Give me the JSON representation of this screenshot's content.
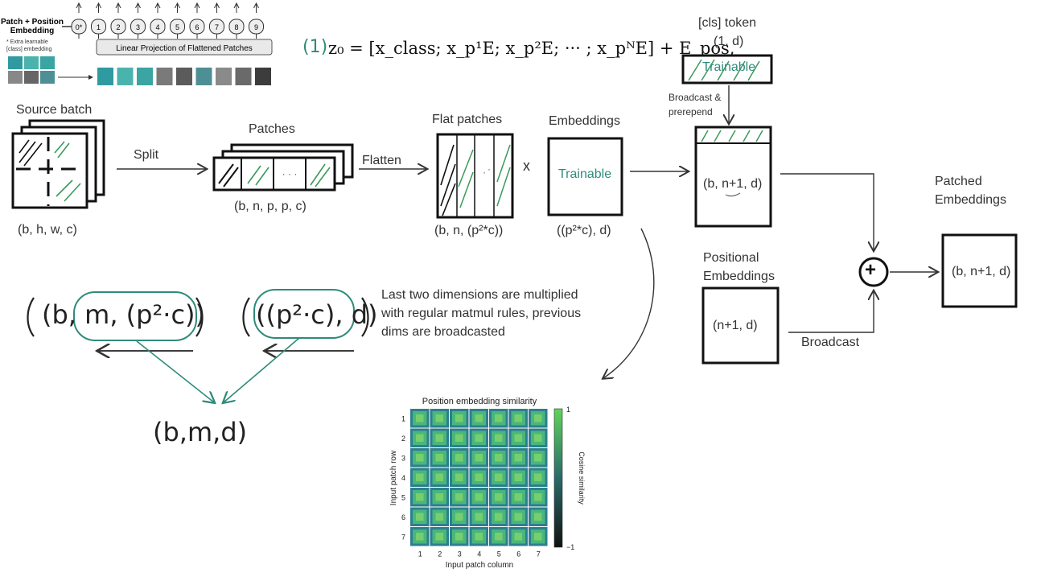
{
  "colors": {
    "teal": "#2e8b7a",
    "hatch_green": "#3a9a5a",
    "black": "#111111"
  },
  "thumbnail": {
    "title_line1": "Patch + Position",
    "title_line2": "Embedding",
    "note_line1": "* Extra learnable",
    "note_line2": "[class] embedding",
    "projection_label": "Linear Projection of Flattened Patches",
    "tokens": [
      "0*",
      "1",
      "2",
      "3",
      "4",
      "5",
      "6",
      "7",
      "8",
      "9"
    ]
  },
  "equation": {
    "number": "(1)",
    "text": "z₀ = [x_class; x_p¹E; x_p²E; ··· ; x_pᴺE] + E_pos,"
  },
  "source_batch": {
    "title": "Source batch",
    "shape": "(b, h, w, c)"
  },
  "split_label": "Split",
  "patches": {
    "title": "Patches",
    "shape": "(b, n, p, p, c)",
    "dots": "· · ·"
  },
  "flatten_label": "Flatten",
  "flat_patches": {
    "title": "Flat patches",
    "shape": "(b, n, (p²*c))"
  },
  "times": "x",
  "embeddings": {
    "title": "Embeddings",
    "inner": "Trainable",
    "shape": "((p²*c), d)"
  },
  "cls_token": {
    "title": "[cls] token",
    "shape": "(1, d)",
    "inner": "Trainable",
    "arrow_label_line1": "Broadcast &",
    "arrow_label_line2": "prerepend"
  },
  "concat": {
    "shape": "(b, n+1, d)"
  },
  "patched_embeddings": {
    "title_line1": "Patched",
    "title_line2": "Embeddings",
    "shape": "(b, n+1, d)"
  },
  "positional_embeddings": {
    "title_line1": "Positional",
    "title_line2": "Embeddings",
    "shape": "(n+1, d)",
    "arrow_label": "Broadcast"
  },
  "plus": "+",
  "note": {
    "line1": "Last two dimensions are multiplied",
    "line2": "with regular matmul rules, previous",
    "line3": "dims are broadcasted"
  },
  "handwriting": {
    "left": "(b, m, (p²·c))",
    "right": "((p²·c), d)",
    "result": "(b,m,d)"
  },
  "heatmap": {
    "title": "Position embedding similarity",
    "xlabel": "Input patch column",
    "ylabel": "Input patch row",
    "colorbar_label": "Cosine similarity",
    "colorbar_max": "1",
    "colorbar_min": "−1",
    "ticks": [
      "1",
      "2",
      "3",
      "4",
      "5",
      "6",
      "7"
    ]
  }
}
